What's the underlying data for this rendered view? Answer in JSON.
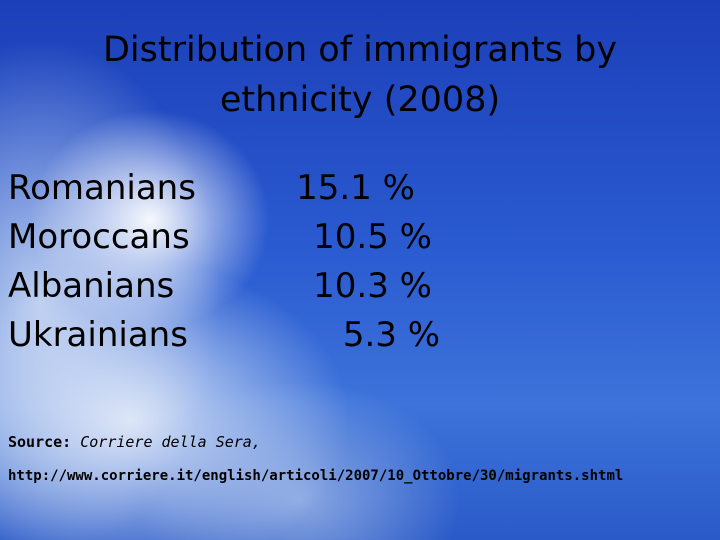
{
  "title": [
    "Distribution of immigrants by",
    "ethnicity (2008)"
  ],
  "rows": [
    [
      "Romanians",
      "15.1 %"
    ],
    [
      "Moroccans",
      "10.5 %"
    ],
    [
      "Albanians",
      "10.3 %"
    ],
    [
      "Ukrainians",
      "5.3 %"
    ]
  ],
  "source": {
    "label": "Source:",
    "publication": "Corriere della Sera,",
    "url": "http://www.corriere.it/english/articoli/2007/10_Ottobre/30/migrants.shtml"
  }
}
